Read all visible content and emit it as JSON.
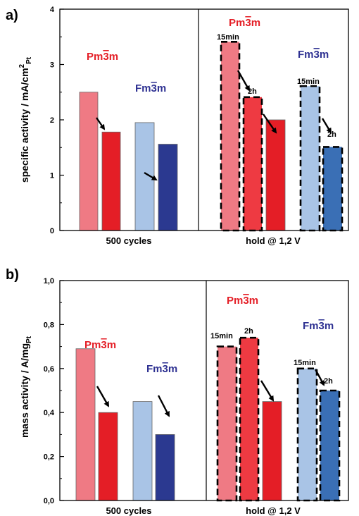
{
  "colors": {
    "pm_light": "#ef7a84",
    "pm_mid": "#ee3a42",
    "pm_dark": "#e41e26",
    "fm_light": "#a9c4e6",
    "fm_navy": "#2b3990",
    "fm_blue": "#3a6fb5",
    "pm_label": "#e41e26",
    "fm_label": "#2e3192"
  },
  "chart_data": [
    {
      "type": "bar",
      "panel_label": "a)",
      "ylabel_main": "specific activity / mA/cm",
      "ylabel_sup": "2",
      "ylabel_sub": "Pt",
      "ylim": [
        0,
        4
      ],
      "yticks": [
        "0",
        "1",
        "2",
        "3",
        "4"
      ],
      "groups": [
        "500 cycles",
        "hold @ 1,2 V"
      ],
      "phase_labels": {
        "pm": {
          "pre": "Pm",
          "bar": "3",
          "post": "m"
        },
        "fm": {
          "pre": "Fm",
          "bar": "3",
          "post": "m"
        }
      },
      "series": [
        {
          "group": "500 cycles",
          "phase": "Pm3m",
          "values": [
            2.5,
            1.78
          ]
        },
        {
          "group": "500 cycles",
          "phase": "Fm3m",
          "values": [
            1.95,
            1.56
          ]
        },
        {
          "group": "hold @ 1,2 V",
          "phase": "Pm3m",
          "values": [
            3.41,
            2.41,
            2.0
          ]
        },
        {
          "group": "hold @ 1,2 V",
          "phase": "Fm3m",
          "values": [
            2.61,
            1.51
          ]
        }
      ],
      "bar_labels": [
        "15min",
        "2h",
        "15min",
        "2h"
      ]
    },
    {
      "type": "bar",
      "panel_label": "b)",
      "ylabel_main": "mass activity / A/mg",
      "ylabel_sub": "Pt",
      "ylim": [
        0,
        1.0
      ],
      "yticks": [
        "0,0",
        "0,2",
        "0,4",
        "0,6",
        "0,8",
        "1,0"
      ],
      "groups": [
        "500 cycles",
        "hold @ 1,2 V"
      ],
      "phase_labels": {
        "pm": {
          "pre": "Pm",
          "bar": "3",
          "post": "m"
        },
        "fm": {
          "pre": "Fm",
          "bar": "3",
          "post": "m"
        }
      },
      "series": [
        {
          "group": "500 cycles",
          "phase": "Pm3m",
          "values": [
            0.69,
            0.4
          ]
        },
        {
          "group": "500 cycles",
          "phase": "Fm3m",
          "values": [
            0.45,
            0.3
          ]
        },
        {
          "group": "hold @ 1,2 V",
          "phase": "Pm3m",
          "values": [
            0.7,
            0.74,
            0.45
          ]
        },
        {
          "group": "hold @ 1,2 V",
          "phase": "Fm3m",
          "values": [
            0.6,
            0.5
          ]
        }
      ],
      "bar_labels": [
        "15min",
        "2h",
        "15min",
        "2h"
      ]
    }
  ]
}
